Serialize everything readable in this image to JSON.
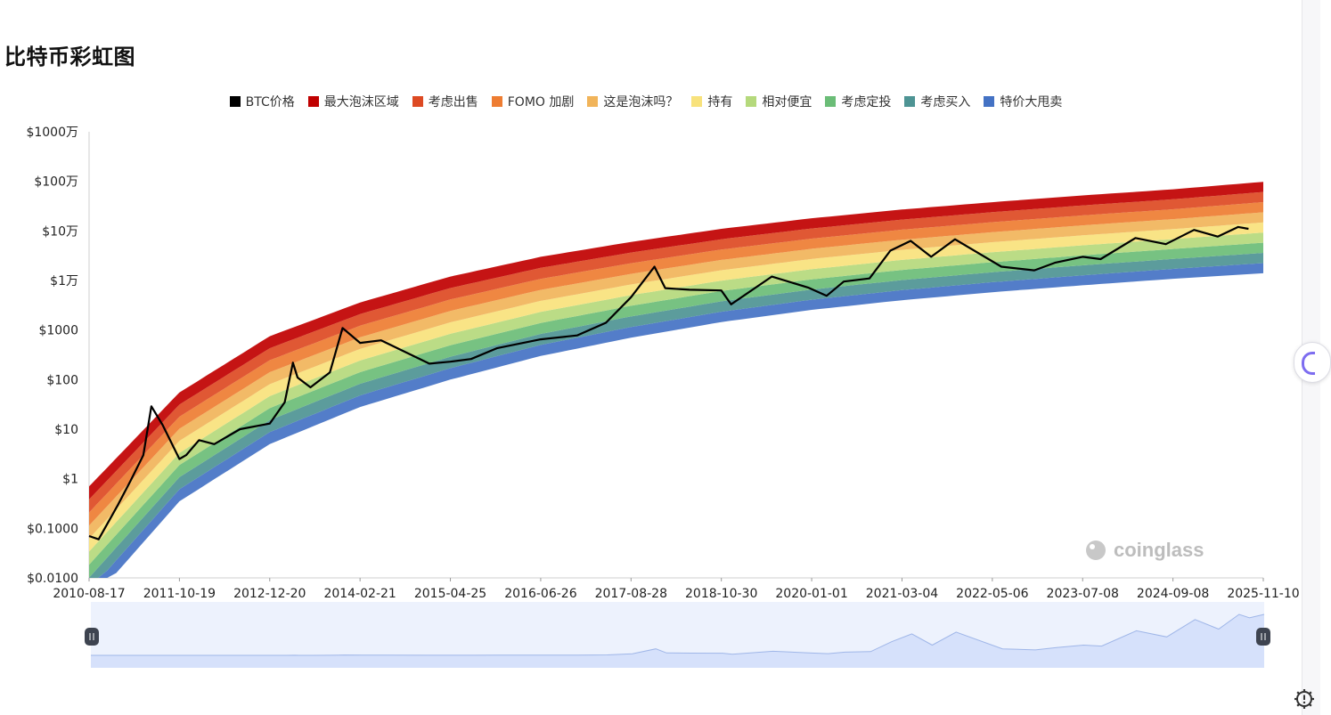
{
  "title": "比特币彩虹图",
  "legend": [
    {
      "label": "BTC价格",
      "color": "#000000"
    },
    {
      "label": "最大泡沫区域",
      "color": "#c00000"
    },
    {
      "label": "考虑出售",
      "color": "#dd4a23"
    },
    {
      "label": "FOMO 加剧",
      "color": "#ee7d32"
    },
    {
      "label": "这是泡沫吗？",
      "color": "#f1b45a"
    },
    {
      "label": "持有",
      "color": "#f8e27c"
    },
    {
      "label": "相对便宜",
      "color": "#b5d97c"
    },
    {
      "label": "考虑定投",
      "color": "#6bbd77"
    },
    {
      "label": "考虑买入",
      "color": "#4e9494"
    },
    {
      "label": "特价大甩卖",
      "color": "#4472c4"
    }
  ],
  "watermark": "coinglass",
  "chart_data": {
    "type": "area",
    "yscale": "log",
    "ylim": [
      0.01,
      10000000
    ],
    "y_ticks": [
      "$0.0100",
      "$0.1000",
      "$1",
      "$10",
      "$100",
      "$1000",
      "$1万",
      "$10万",
      "$100万",
      "$1000万"
    ],
    "x_ticks": [
      "2010-08-17",
      "2011-10-19",
      "2012-12-20",
      "2014-02-21",
      "2015-04-25",
      "2016-06-26",
      "2017-08-28",
      "2018-10-30",
      "2020-01-01",
      "2021-03-04",
      "2022-05-06",
      "2023-07-08",
      "2024-09-08",
      "2025-11-10"
    ],
    "xlim": [
      "2010-08-17",
      "2025-11-10"
    ],
    "bands": {
      "band_names": [
        "特价大甩卖",
        "考虑买入",
        "考虑定投",
        "相对便宜",
        "持有",
        "这是泡沫吗？",
        "FOMO 加剧",
        "考虑出售",
        "最大泡沫区域"
      ],
      "colors": [
        "#4472c4",
        "#4e9494",
        "#6bbd77",
        "#b5d97c",
        "#f8e27c",
        "#f1b45a",
        "#ee7d32",
        "#dd4a23",
        "#c00000"
      ],
      "x": [
        "2010-08-17",
        "2011-10-19",
        "2012-12-20",
        "2014-02-21",
        "2015-04-25",
        "2016-06-26",
        "2017-08-28",
        "2018-10-30",
        "2020-01-01",
        "2021-03-04",
        "2022-05-06",
        "2023-07-08",
        "2024-09-08",
        "2025-11-10"
      ],
      "lower": [
        0.003,
        0.35,
        5,
        28,
        100,
        300,
        700,
        1450,
        2550,
        4000,
        5800,
        8000,
        10800,
        14000
      ],
      "upper": [
        0.7,
        55,
        750,
        3600,
        12000,
        30000,
        60000,
        110000,
        180000,
        270000,
        380000,
        520000,
        690000,
        980000
      ]
    },
    "series": [
      {
        "name": "BTC价格",
        "x": [
          "2010-08-17",
          "2010-10-01",
          "2011-01-01",
          "2011-03-01",
          "2011-05-01",
          "2011-06-08",
          "2011-08-01",
          "2011-10-19",
          "2011-11-20",
          "2012-01-20",
          "2012-04-01",
          "2012-08-01",
          "2012-12-20",
          "2013-03-01",
          "2013-04-09",
          "2013-05-01",
          "2013-07-01",
          "2013-10-01",
          "2013-11-30",
          "2014-02-21",
          "2014-06-01",
          "2015-01-15",
          "2015-04-25",
          "2015-08-01",
          "2015-12-01",
          "2016-06-26",
          "2016-12-15",
          "2017-05-01",
          "2017-08-28",
          "2017-12-17",
          "2018-02-06",
          "2018-06-01",
          "2018-10-30",
          "2018-12-15",
          "2019-06-26",
          "2019-12-15",
          "2020-03-12",
          "2020-06-01",
          "2020-10-01",
          "2021-01-08",
          "2021-04-14",
          "2021-07-20",
          "2021-11-10",
          "2022-06-18",
          "2022-11-21",
          "2023-03-01",
          "2023-07-08",
          "2023-10-01",
          "2024-03-14",
          "2024-08-05",
          "2024-12-17",
          "2025-04-08",
          "2025-07-14",
          "2025-09-01"
        ],
        "values": [
          0.07,
          0.06,
          0.3,
          0.9,
          3,
          29,
          12,
          2.5,
          3,
          6,
          5,
          10,
          13,
          35,
          220,
          110,
          70,
          140,
          1100,
          550,
          620,
          210,
          230,
          260,
          430,
          650,
          780,
          1400,
          4600,
          19000,
          7000,
          6500,
          6300,
          3300,
          12000,
          7200,
          4900,
          9500,
          11000,
          40000,
          63000,
          30000,
          68000,
          19000,
          16000,
          23000,
          30000,
          27000,
          72000,
          54000,
          105000,
          77000,
          120000,
          110000
        ]
      }
    ]
  }
}
